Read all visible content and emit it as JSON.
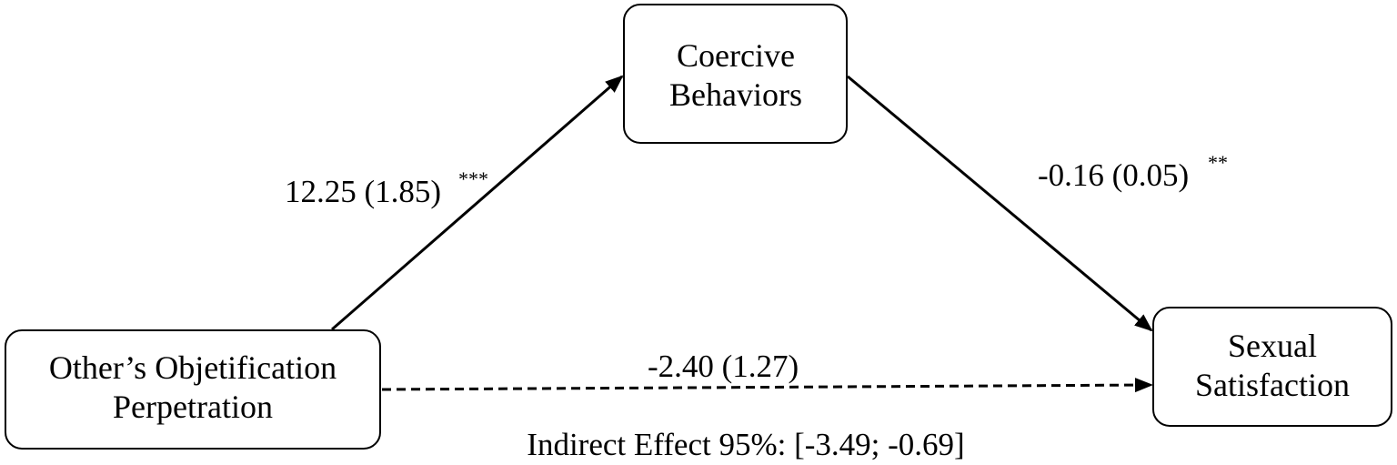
{
  "nodes": {
    "predictor": {
      "line1": "Other’s Objetification",
      "line2": "Perpetration"
    },
    "mediator": {
      "line1": "Coercive",
      "line2": "Behaviors"
    },
    "outcome": {
      "line1": "Sexual",
      "line2": "Satisfaction"
    }
  },
  "paths": {
    "a": {
      "coefficient": "12.25 (1.85)",
      "significance": "***"
    },
    "b": {
      "coefficient": "-0.16 (0.05)",
      "significance": "**"
    },
    "c_prime": {
      "coefficient": "-2.40 (1.27)",
      "significance": ""
    }
  },
  "indirect_effect": "Indirect Effect 95%: [-3.49; -0.69]"
}
